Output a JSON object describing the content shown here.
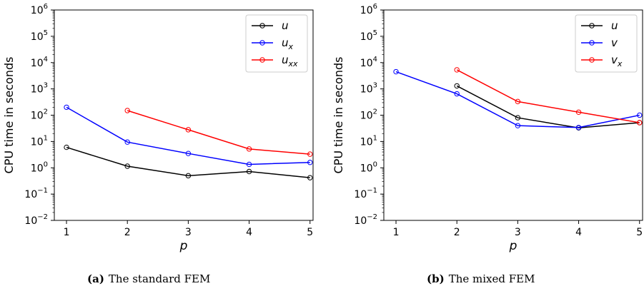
{
  "chart_data": [
    {
      "type": "line",
      "y_scale": "log",
      "xlabel": "p",
      "ylabel": "CPU time in seconds",
      "xlim": [
        0.8,
        5.05
      ],
      "ylim_exp": [
        -2,
        6
      ],
      "x_ticks": [
        1,
        2,
        3,
        4,
        5
      ],
      "y_tick_labels": [
        "10",
        "10",
        "10",
        "10",
        "10",
        "10",
        "10",
        "10",
        "10"
      ],
      "y_tick_exponents": [
        "−2",
        "−1",
        "0",
        "1",
        "2",
        "3",
        "4",
        "5",
        "6"
      ],
      "legend": {
        "placement": "top-right"
      },
      "caption_tag": "(a)",
      "caption_text": "The standard FEM",
      "series": [
        {
          "name": "u",
          "sub": "",
          "color": "#000000",
          "x": [
            1,
            2,
            3,
            4,
            5
          ],
          "y": [
            6.0,
            1.15,
            0.5,
            0.72,
            0.42
          ]
        },
        {
          "name": "u",
          "sub": "x",
          "color": "#0000ff",
          "x": [
            1,
            2,
            3,
            4,
            5
          ],
          "y": [
            200,
            9.5,
            3.5,
            1.35,
            1.6
          ]
        },
        {
          "name": "u",
          "sub": "xx",
          "color": "#ff0000",
          "x": [
            2,
            3,
            4,
            5
          ],
          "y": [
            150,
            28,
            5.2,
            3.3
          ]
        }
      ]
    },
    {
      "type": "line",
      "y_scale": "log",
      "xlabel": "p",
      "ylabel": "CPU time in seconds",
      "xlim": [
        0.8,
        5.05
      ],
      "ylim_exp": [
        -2,
        6
      ],
      "x_ticks": [
        1,
        2,
        3,
        4,
        5
      ],
      "y_tick_labels": [
        "10",
        "10",
        "10",
        "10",
        "10",
        "10",
        "10",
        "10",
        "10"
      ],
      "y_tick_exponents": [
        "−2",
        "−1",
        "0",
        "1",
        "2",
        "3",
        "4",
        "5",
        "6"
      ],
      "legend": {
        "placement": "top-right"
      },
      "caption_tag": "(b)",
      "caption_text": "The mixed FEM",
      "series": [
        {
          "name": "u",
          "sub": "",
          "color": "#000000",
          "x": [
            2,
            3,
            4,
            5
          ],
          "y": [
            1300,
            80,
            33,
            52
          ]
        },
        {
          "name": "v",
          "sub": "",
          "color": "#0000ff",
          "x": [
            1,
            2,
            3,
            4,
            5
          ],
          "y": [
            4500,
            650,
            40,
            34,
            100
          ]
        },
        {
          "name": "v",
          "sub": "x",
          "color": "#ff0000",
          "x": [
            2,
            3,
            4,
            5
          ],
          "y": [
            5300,
            330,
            130,
            52
          ]
        }
      ]
    }
  ]
}
